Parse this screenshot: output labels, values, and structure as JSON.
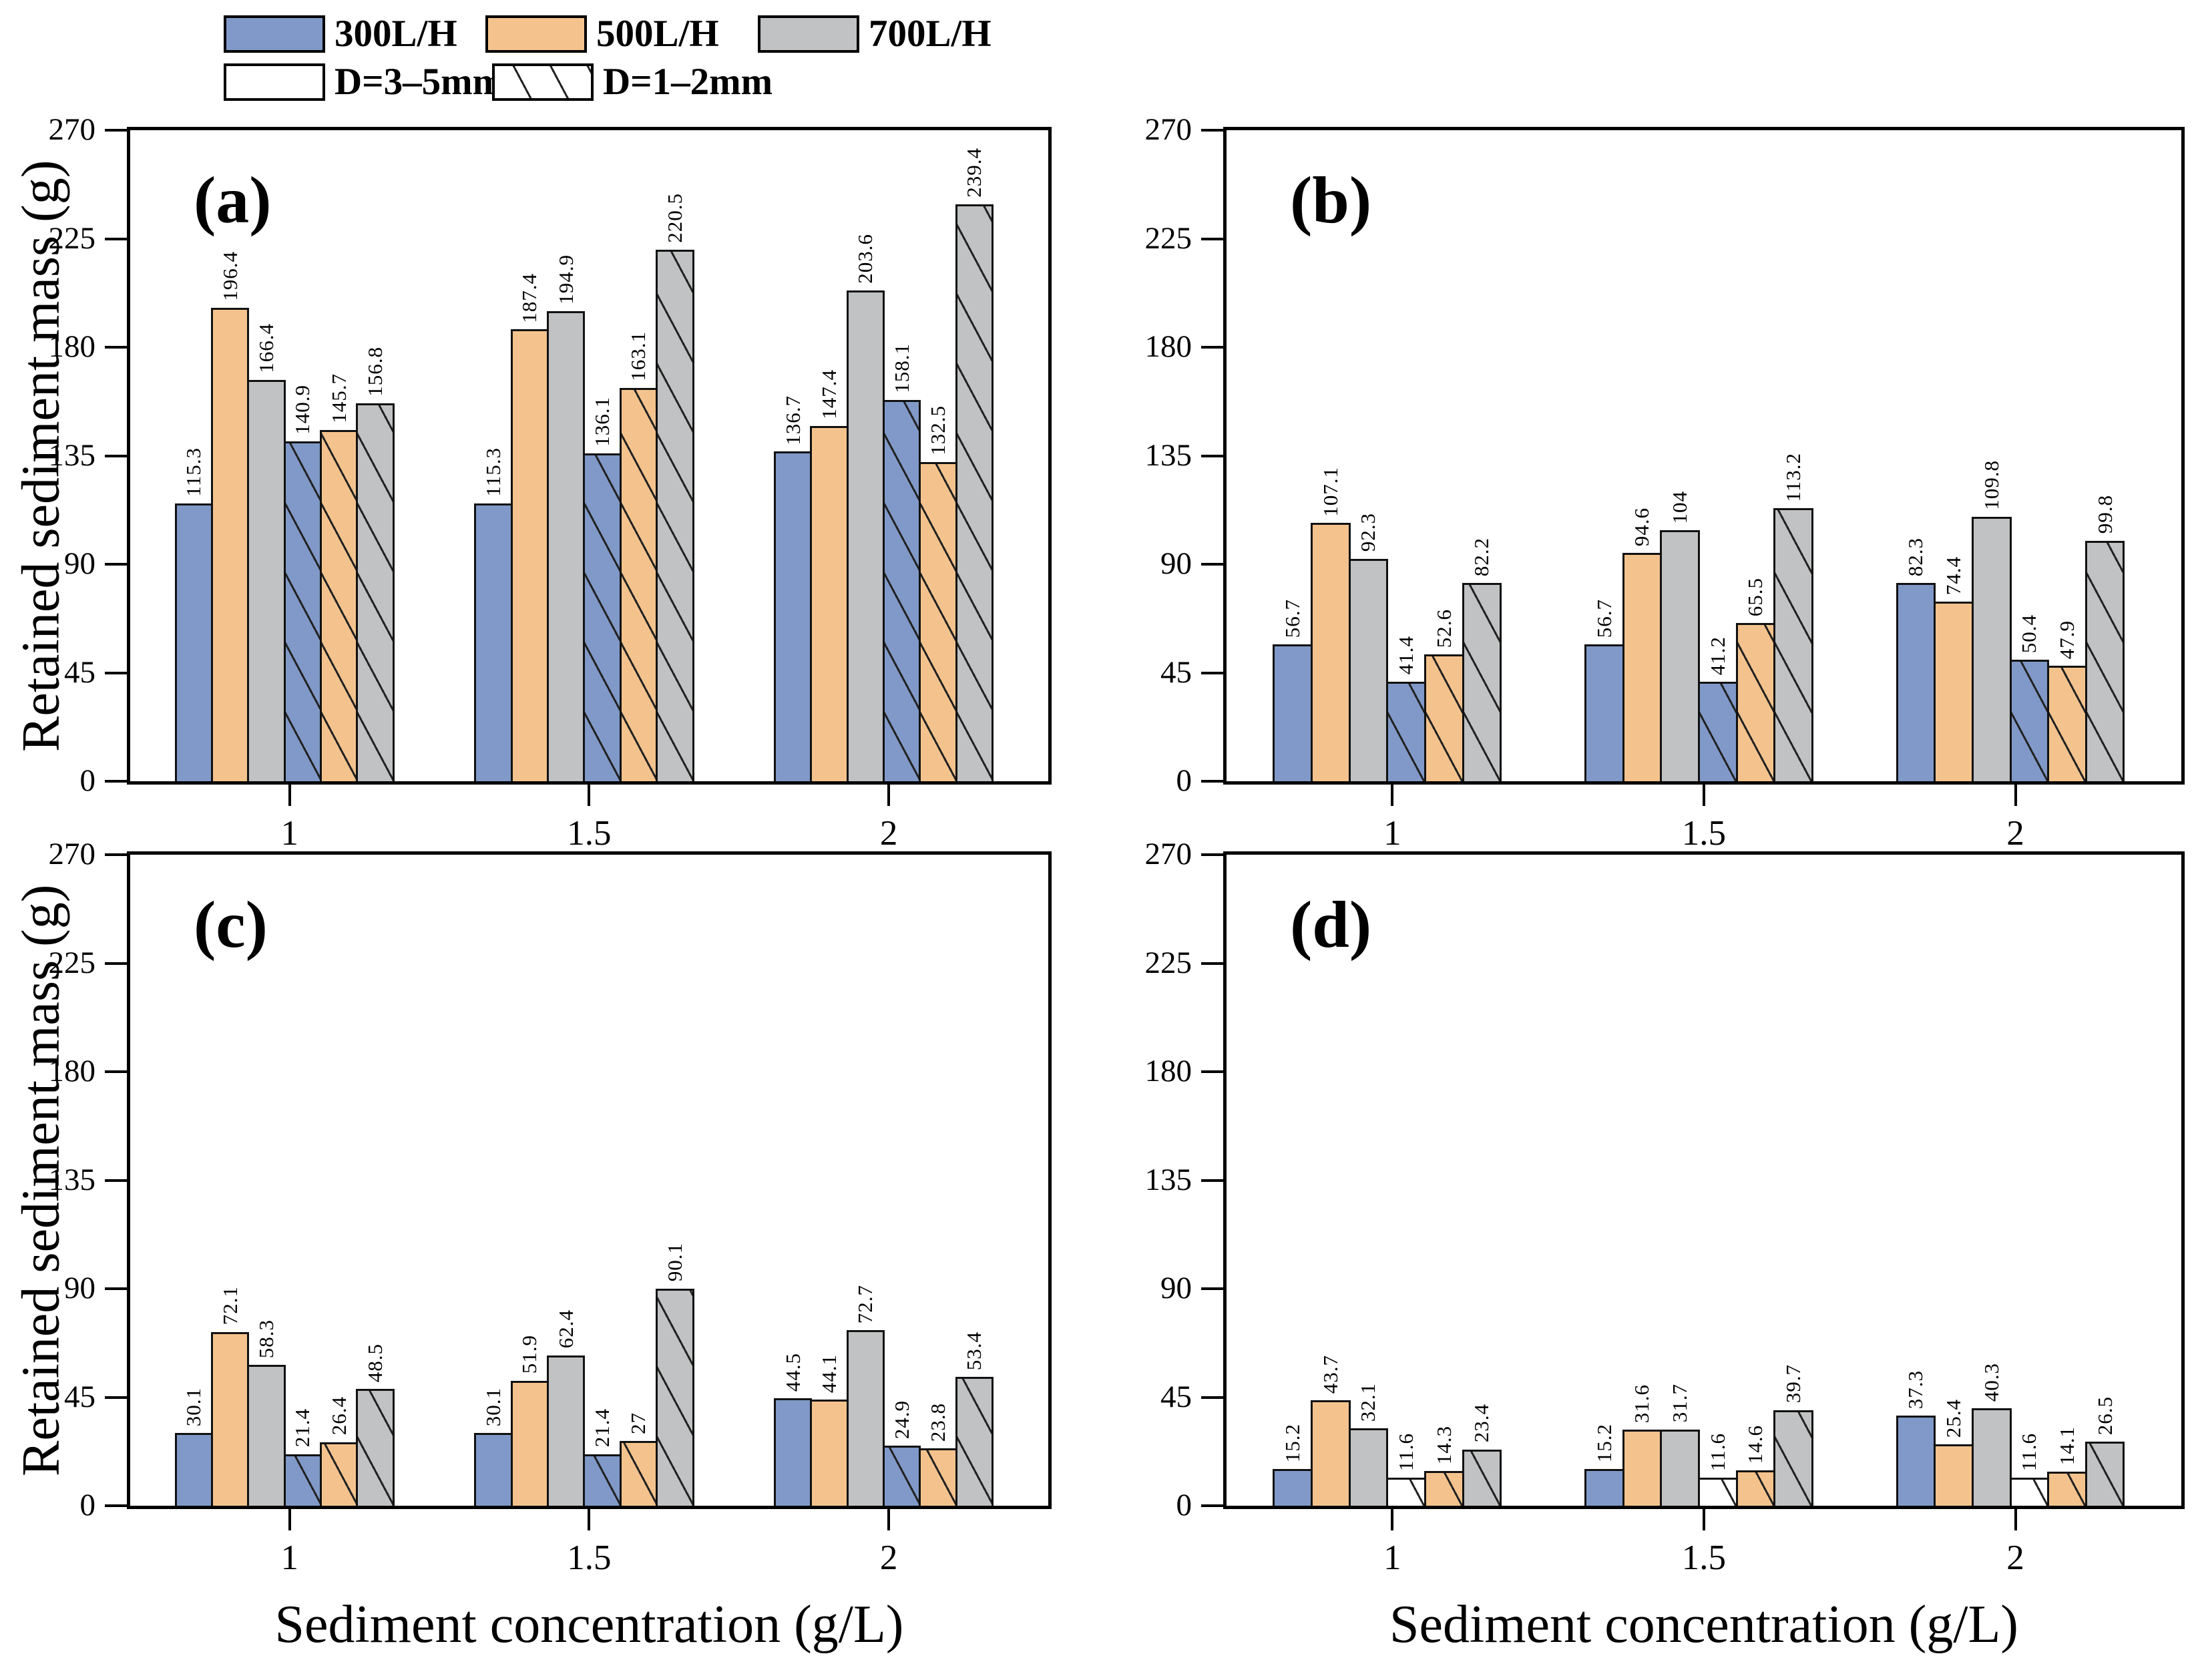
{
  "figure": {
    "background": "#ffffff",
    "ylabel": "Retained sediment mass (g)",
    "xlabel": "Sediment concentration (g/L)",
    "ylim": [
      0,
      270
    ],
    "y_ticks": [
      "0",
      "45",
      "90",
      "135",
      "180",
      "225",
      "270"
    ],
    "x_ticks": [
      "1",
      "1.5",
      "2"
    ],
    "colors": {
      "flow_300": "#8099c8",
      "flow_500": "#f4c38d",
      "flow_700": "#c0c2c3",
      "white_fill": "#ffffff",
      "bar_edge": "#111111",
      "hatch_line": "#222222"
    },
    "legend": {
      "items": [
        {
          "label": "300L/H",
          "fill": "#8099c8",
          "hatch": false
        },
        {
          "label": "500L/H",
          "fill": "#f4c38d",
          "hatch": false
        },
        {
          "label": "700L/H",
          "fill": "#c0c2c3",
          "hatch": false
        },
        {
          "label": "D=3–5mm",
          "fill": "#ffffff",
          "hatch": false
        },
        {
          "label": "D=1–2mm",
          "fill": "#ffffff",
          "hatch": true
        }
      ]
    }
  },
  "chart_data": [
    {
      "type": "bar",
      "panel_label": "(a)",
      "categories": [
        "1",
        "1.5",
        "2"
      ],
      "ylim": [
        0,
        270
      ],
      "ylabel": "Retained sediment mass (g)",
      "xlabel": "",
      "legend_position": "top-left-of-figure",
      "grid": false,
      "series": [
        {
          "name": "300L/H D=3–5mm",
          "fill": "#8099c8",
          "hatch": false,
          "values": [
            115.3,
            115.3,
            136.7
          ]
        },
        {
          "name": "500L/H D=3–5mm",
          "fill": "#f4c38d",
          "hatch": false,
          "values": [
            196.4,
            187.4,
            147.4
          ]
        },
        {
          "name": "700L/H D=3–5mm",
          "fill": "#c0c2c3",
          "hatch": false,
          "values": [
            166.4,
            194.9,
            203.6
          ]
        },
        {
          "name": "300L/H D=1–2mm",
          "fill": "#8099c8",
          "hatch": true,
          "values": [
            140.9,
            136.1,
            158.1
          ]
        },
        {
          "name": "500L/H D=1–2mm",
          "fill": "#f4c38d",
          "hatch": true,
          "values": [
            145.7,
            163.1,
            132.5
          ]
        },
        {
          "name": "700L/H D=1–2mm",
          "fill": "#c0c2c3",
          "hatch": true,
          "values": [
            156.8,
            220.5,
            239.4
          ]
        }
      ]
    },
    {
      "type": "bar",
      "panel_label": "(b)",
      "categories": [
        "1",
        "1.5",
        "2"
      ],
      "ylim": [
        0,
        270
      ],
      "ylabel": "",
      "xlabel": "",
      "grid": false,
      "series": [
        {
          "name": "300L/H D=3–5mm",
          "fill": "#8099c8",
          "hatch": false,
          "values": [
            56.7,
            56.7,
            82.3
          ]
        },
        {
          "name": "500L/H D=3–5mm",
          "fill": "#f4c38d",
          "hatch": false,
          "values": [
            107.1,
            94.6,
            74.4
          ]
        },
        {
          "name": "700L/H D=3–5mm",
          "fill": "#c0c2c3",
          "hatch": false,
          "values": [
            92.3,
            104,
            109.8
          ]
        },
        {
          "name": "300L/H D=1–2mm",
          "fill": "#8099c8",
          "hatch": true,
          "values": [
            41.4,
            41.2,
            50.4
          ]
        },
        {
          "name": "500L/H D=1–2mm",
          "fill": "#f4c38d",
          "hatch": true,
          "values": [
            52.6,
            65.5,
            47.9
          ]
        },
        {
          "name": "700L/H D=1–2mm",
          "fill": "#c0c2c3",
          "hatch": true,
          "values": [
            82.2,
            113.2,
            99.8
          ]
        }
      ]
    },
    {
      "type": "bar",
      "panel_label": "(c)",
      "categories": [
        "1",
        "1.5",
        "2"
      ],
      "ylim": [
        0,
        270
      ],
      "ylabel": "Retained sediment mass (g)",
      "xlabel": "Sediment concentration (g/L)",
      "grid": false,
      "series": [
        {
          "name": "300L/H D=3–5mm",
          "fill": "#8099c8",
          "hatch": false,
          "values": [
            30.1,
            30.1,
            44.5
          ]
        },
        {
          "name": "500L/H D=3–5mm",
          "fill": "#f4c38d",
          "hatch": false,
          "values": [
            72.1,
            51.9,
            44.1
          ]
        },
        {
          "name": "700L/H D=3–5mm",
          "fill": "#c0c2c3",
          "hatch": false,
          "values": [
            58.3,
            62.4,
            72.7
          ]
        },
        {
          "name": "300L/H D=1–2mm",
          "fill": "#8099c8",
          "hatch": true,
          "values": [
            21.4,
            21.4,
            24.9
          ]
        },
        {
          "name": "500L/H D=1–2mm",
          "fill": "#f4c38d",
          "hatch": true,
          "values": [
            26.4,
            27,
            23.8
          ]
        },
        {
          "name": "700L/H D=1–2mm",
          "fill": "#c0c2c3",
          "hatch": true,
          "values": [
            48.5,
            90.1,
            53.4
          ]
        }
      ]
    },
    {
      "type": "bar",
      "panel_label": "(d)",
      "categories": [
        "1",
        "1.5",
        "2"
      ],
      "ylim": [
        0,
        270
      ],
      "ylabel": "",
      "xlabel": "Sediment concentration (g/L)",
      "grid": false,
      "series": [
        {
          "name": "300L/H D=3–5mm",
          "fill": "#8099c8",
          "hatch": false,
          "values": [
            15.2,
            15.2,
            37.3
          ]
        },
        {
          "name": "500L/H D=3–5mm",
          "fill": "#f4c38d",
          "hatch": false,
          "values": [
            43.7,
            31.6,
            25.4
          ]
        },
        {
          "name": "700L/H D=3–5mm",
          "fill": "#c0c2c3",
          "hatch": false,
          "values": [
            32.1,
            31.7,
            40.3
          ]
        },
        {
          "name": "300L/H D=1–2mm",
          "fill": "#ffffff",
          "hatch": true,
          "values": [
            11.6,
            11.6,
            11.6
          ]
        },
        {
          "name": "500L/H D=1–2mm",
          "fill": "#f4c38d",
          "hatch": true,
          "values": [
            14.3,
            14.6,
            14.1
          ]
        },
        {
          "name": "700L/H D=1–2mm",
          "fill": "#c0c2c3",
          "hatch": true,
          "values": [
            23.4,
            39.7,
            26.5
          ]
        }
      ]
    }
  ]
}
